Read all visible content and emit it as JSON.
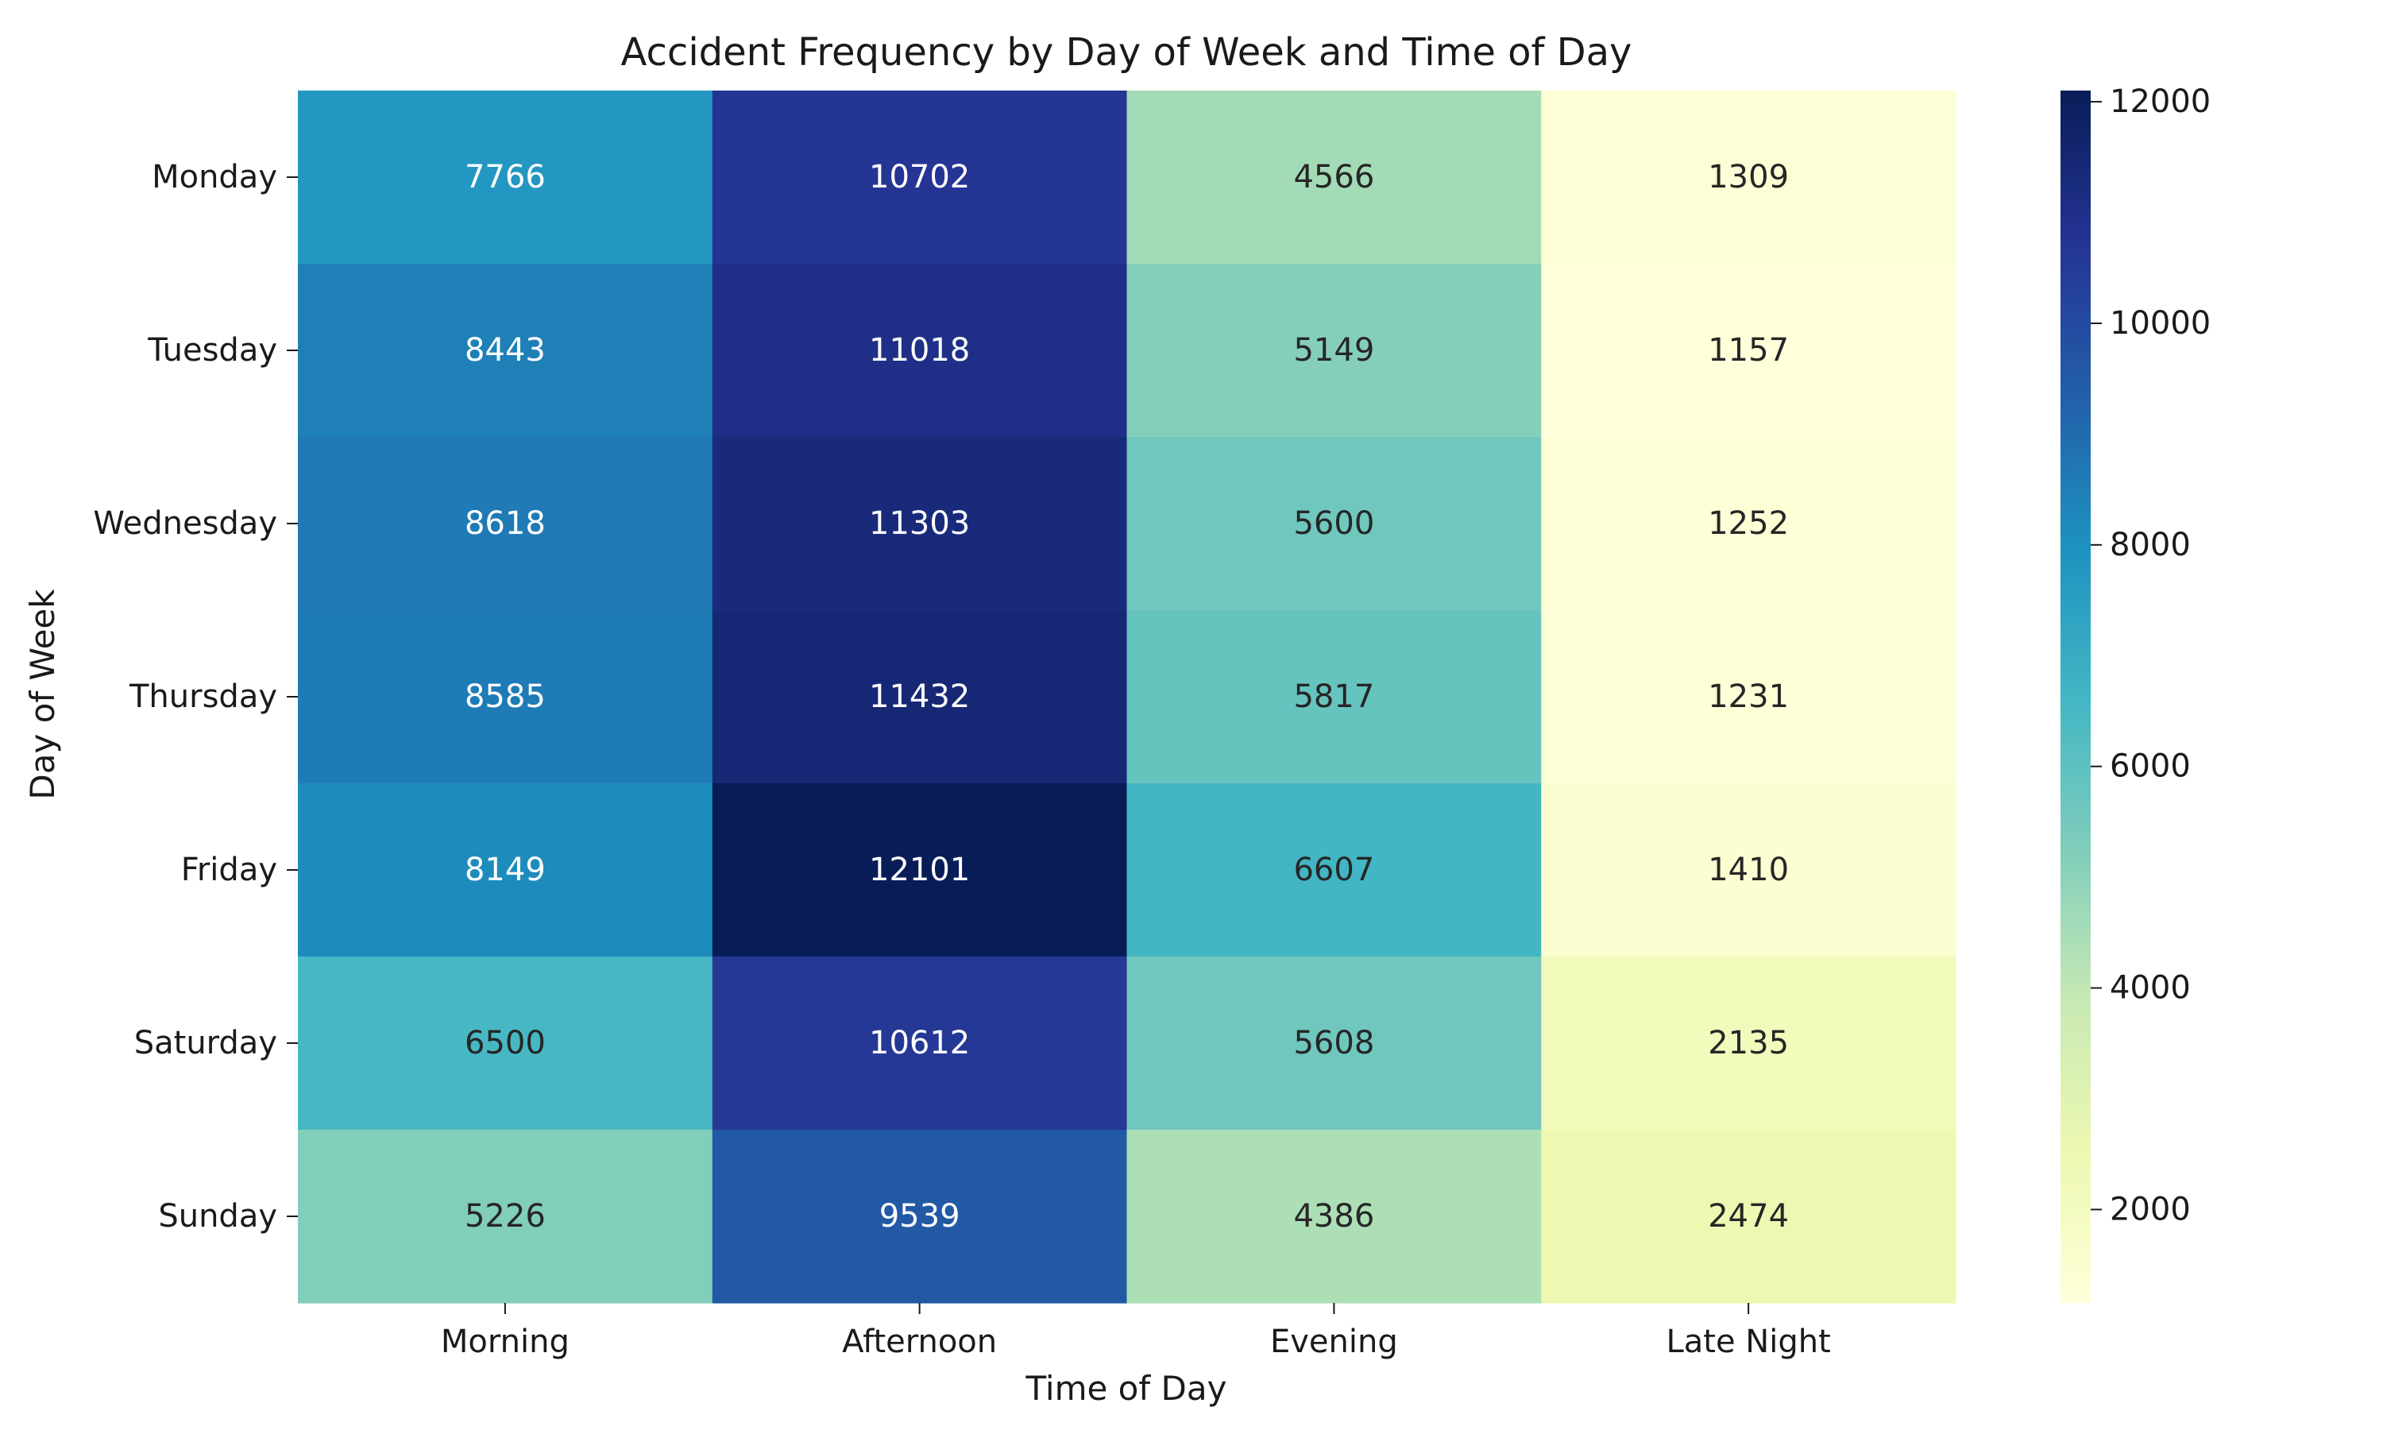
{
  "chart_data": {
    "type": "heatmap",
    "title": "Accident Frequency by Day of Week and Time of Day",
    "xlabel": "Time of Day",
    "ylabel": "Day of Week",
    "x_categories": [
      "Morning",
      "Afternoon",
      "Evening",
      "Late Night"
    ],
    "y_categories": [
      "Monday",
      "Tuesday",
      "Wednesday",
      "Thursday",
      "Friday",
      "Saturday",
      "Sunday"
    ],
    "values": [
      [
        7766,
        10702,
        4566,
        1309
      ],
      [
        8443,
        11018,
        5149,
        1157
      ],
      [
        8618,
        11303,
        5600,
        1252
      ],
      [
        8585,
        11432,
        5817,
        1231
      ],
      [
        8149,
        12101,
        6607,
        1410
      ],
      [
        6500,
        10612,
        5608,
        2135
      ],
      [
        5226,
        9539,
        4386,
        2474
      ]
    ],
    "colormap": "YlGnBu",
    "value_range": [
      1157,
      12101
    ],
    "colorbar_ticks": [
      2000,
      4000,
      6000,
      8000,
      10000,
      12000
    ],
    "annotations": true,
    "grid": false
  }
}
